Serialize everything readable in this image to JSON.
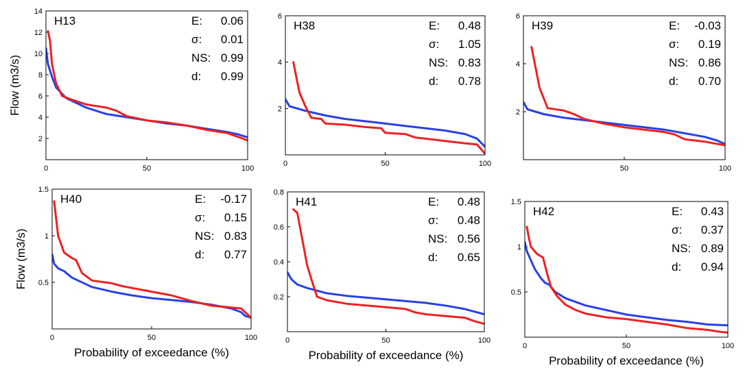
{
  "chart_data": [
    {
      "type": "line",
      "title": "H13",
      "ylabel": "Flow (m3/s)",
      "xlabel": "",
      "xlim": [
        0,
        100
      ],
      "ylim": [
        0,
        14
      ],
      "xticks": [
        "0",
        "50",
        "100"
      ],
      "yticks": [
        "2",
        "4",
        "6",
        "8",
        "10",
        "12",
        "14"
      ],
      "stats": [
        {
          "label": "E:",
          "value": "0.06"
        },
        {
          "label": "σ:",
          "value": "0.01"
        },
        {
          "label": "NS:",
          "value": "0.99"
        },
        {
          "label": "d:",
          "value": "0.99"
        }
      ],
      "series": [
        {
          "color": "#2640e6",
          "points": [
            [
              0,
              10.5
            ],
            [
              1,
              9
            ],
            [
              3,
              7.8
            ],
            [
              5,
              6.8
            ],
            [
              10,
              5.8
            ],
            [
              20,
              4.9
            ],
            [
              30,
              4.3
            ],
            [
              40,
              4.0
            ],
            [
              50,
              3.7
            ],
            [
              60,
              3.4
            ],
            [
              70,
              3.2
            ],
            [
              80,
              2.9
            ],
            [
              90,
              2.6
            ],
            [
              95,
              2.4
            ],
            [
              100,
              2.1
            ]
          ]
        },
        {
          "color": "#ee2020",
          "points": [
            [
              1,
              12.1
            ],
            [
              2,
              11.2
            ],
            [
              3,
              9
            ],
            [
              5,
              7.2
            ],
            [
              8,
              6.0
            ],
            [
              12,
              5.7
            ],
            [
              20,
              5.2
            ],
            [
              30,
              4.9
            ],
            [
              35,
              4.6
            ],
            [
              40,
              4.1
            ],
            [
              50,
              3.7
            ],
            [
              60,
              3.5
            ],
            [
              70,
              3.2
            ],
            [
              80,
              2.8
            ],
            [
              90,
              2.5
            ],
            [
              96,
              2.1
            ],
            [
              100,
              1.8
            ]
          ]
        }
      ]
    },
    {
      "type": "line",
      "title": "H38",
      "ylabel": "",
      "xlabel": "",
      "xlim": [
        0,
        100
      ],
      "ylim": [
        0,
        6
      ],
      "xticks": [
        "0",
        "50",
        "100"
      ],
      "yticks": [
        "2",
        "4",
        "6"
      ],
      "stats": [
        {
          "label": "E:",
          "value": "0.48"
        },
        {
          "label": "σ:",
          "value": "1.05"
        },
        {
          "label": "NS:",
          "value": "0.83"
        },
        {
          "label": "d:",
          "value": "0.78"
        }
      ],
      "series": [
        {
          "color": "#2640e6",
          "points": [
            [
              0,
              2.4
            ],
            [
              2,
              2.1
            ],
            [
              10,
              1.9
            ],
            [
              20,
              1.7
            ],
            [
              30,
              1.55
            ],
            [
              40,
              1.45
            ],
            [
              50,
              1.35
            ],
            [
              60,
              1.25
            ],
            [
              70,
              1.15
            ],
            [
              80,
              1.05
            ],
            [
              90,
              0.9
            ],
            [
              96,
              0.7
            ],
            [
              100,
              0.35
            ]
          ]
        },
        {
          "color": "#ee2020",
          "points": [
            [
              4,
              4.0
            ],
            [
              7,
              2.7
            ],
            [
              10,
              2.1
            ],
            [
              13,
              1.6
            ],
            [
              18,
              1.55
            ],
            [
              20,
              1.35
            ],
            [
              30,
              1.3
            ],
            [
              40,
              1.2
            ],
            [
              48,
              1.15
            ],
            [
              50,
              0.95
            ],
            [
              60,
              0.9
            ],
            [
              65,
              0.75
            ],
            [
              70,
              0.7
            ],
            [
              80,
              0.6
            ],
            [
              90,
              0.5
            ],
            [
              96,
              0.45
            ],
            [
              100,
              0.05
            ]
          ]
        }
      ]
    },
    {
      "type": "line",
      "title": "H39",
      "ylabel": "",
      "xlabel": "",
      "xlim": [
        0,
        100
      ],
      "ylim": [
        0,
        6
      ],
      "xticks": [
        "50",
        "100"
      ],
      "yticks": [
        "2",
        "4",
        "6"
      ],
      "stats": [
        {
          "label": "E:",
          "value": "-0.03"
        },
        {
          "label": "σ:",
          "value": "0.19"
        },
        {
          "label": "NS:",
          "value": "0.86"
        },
        {
          "label": "d:",
          "value": "0.70"
        }
      ],
      "series": [
        {
          "color": "#2640e6",
          "points": [
            [
              0,
              2.4
            ],
            [
              2,
              2.1
            ],
            [
              10,
              1.9
            ],
            [
              20,
              1.75
            ],
            [
              30,
              1.65
            ],
            [
              40,
              1.55
            ],
            [
              50,
              1.45
            ],
            [
              60,
              1.35
            ],
            [
              70,
              1.25
            ],
            [
              80,
              1.1
            ],
            [
              90,
              0.95
            ],
            [
              96,
              0.8
            ],
            [
              100,
              0.65
            ]
          ]
        },
        {
          "color": "#ee2020",
          "points": [
            [
              4,
              4.7
            ],
            [
              8,
              3.0
            ],
            [
              12,
              2.15
            ],
            [
              20,
              2.05
            ],
            [
              25,
              1.9
            ],
            [
              30,
              1.7
            ],
            [
              40,
              1.5
            ],
            [
              50,
              1.35
            ],
            [
              60,
              1.25
            ],
            [
              70,
              1.15
            ],
            [
              75,
              1.05
            ],
            [
              80,
              0.85
            ],
            [
              90,
              0.75
            ],
            [
              100,
              0.6
            ]
          ]
        }
      ]
    },
    {
      "type": "line",
      "title": "H40",
      "ylabel": "Flow (m3/s)",
      "xlabel": "Probability of exceedance (%)",
      "xlim": [
        0,
        100
      ],
      "ylim": [
        0,
        1.5
      ],
      "xticks": [
        "0",
        "50",
        "100"
      ],
      "yticks": [
        "0.5",
        "1",
        "1.5"
      ],
      "stats": [
        {
          "label": "E:",
          "value": "-0.17"
        },
        {
          "label": "σ:",
          "value": "0.15"
        },
        {
          "label": "NS:",
          "value": "0.83"
        },
        {
          "label": "d:",
          "value": "0.77"
        }
      ],
      "series": [
        {
          "color": "#2640e6",
          "points": [
            [
              0,
              0.8
            ],
            [
              1,
              0.7
            ],
            [
              3,
              0.65
            ],
            [
              6,
              0.62
            ],
            [
              10,
              0.55
            ],
            [
              20,
              0.45
            ],
            [
              30,
              0.4
            ],
            [
              40,
              0.36
            ],
            [
              50,
              0.33
            ],
            [
              60,
              0.31
            ],
            [
              70,
              0.29
            ],
            [
              80,
              0.26
            ],
            [
              90,
              0.22
            ],
            [
              95,
              0.18
            ],
            [
              97,
              0.14
            ],
            [
              100,
              0.12
            ]
          ]
        },
        {
          "color": "#ee2020",
          "points": [
            [
              1,
              1.37
            ],
            [
              3,
              1.0
            ],
            [
              6,
              0.82
            ],
            [
              10,
              0.76
            ],
            [
              12,
              0.74
            ],
            [
              15,
              0.6
            ],
            [
              20,
              0.52
            ],
            [
              30,
              0.49
            ],
            [
              35,
              0.46
            ],
            [
              40,
              0.44
            ],
            [
              50,
              0.4
            ],
            [
              60,
              0.36
            ],
            [
              70,
              0.3
            ],
            [
              80,
              0.25
            ],
            [
              90,
              0.23
            ],
            [
              95,
              0.22
            ],
            [
              100,
              0.12
            ]
          ]
        }
      ]
    },
    {
      "type": "line",
      "title": "H41",
      "ylabel": "",
      "xlabel": "Probability of exceedance (%)",
      "xlim": [
        0,
        100
      ],
      "ylim": [
        0,
        0.8
      ],
      "xticks": [
        "0",
        "50",
        "100"
      ],
      "yticks": [
        "0.2",
        "0.4",
        "0.6",
        "0.8"
      ],
      "stats": [
        {
          "label": "E:",
          "value": "0.48"
        },
        {
          "label": "σ:",
          "value": "0.48"
        },
        {
          "label": "NS:",
          "value": "0.56"
        },
        {
          "label": "d:",
          "value": "0.65"
        }
      ],
      "series": [
        {
          "color": "#2640e6",
          "points": [
            [
              0,
              0.34
            ],
            [
              2,
              0.3
            ],
            [
              5,
              0.27
            ],
            [
              10,
              0.25
            ],
            [
              20,
              0.22
            ],
            [
              30,
              0.205
            ],
            [
              40,
              0.195
            ],
            [
              50,
              0.185
            ],
            [
              60,
              0.175
            ],
            [
              70,
              0.165
            ],
            [
              80,
              0.15
            ],
            [
              90,
              0.13
            ],
            [
              100,
              0.1
            ]
          ]
        },
        {
          "color": "#ee2020",
          "points": [
            [
              3,
              0.7
            ],
            [
              5,
              0.68
            ],
            [
              8,
              0.5
            ],
            [
              10,
              0.38
            ],
            [
              13,
              0.27
            ],
            [
              15,
              0.2
            ],
            [
              20,
              0.18
            ],
            [
              30,
              0.16
            ],
            [
              40,
              0.15
            ],
            [
              50,
              0.14
            ],
            [
              60,
              0.13
            ],
            [
              65,
              0.11
            ],
            [
              70,
              0.1
            ],
            [
              80,
              0.09
            ],
            [
              90,
              0.08
            ],
            [
              95,
              0.06
            ],
            [
              100,
              0.045
            ]
          ]
        }
      ]
    },
    {
      "type": "line",
      "title": "H42",
      "ylabel": "",
      "xlabel": "Probability of exceedance (%)",
      "xlim": [
        0,
        100
      ],
      "ylim": [
        0,
        1.5
      ],
      "xticks": [
        "0",
        "50",
        "100"
      ],
      "yticks": [
        "0.5",
        "1",
        "1.5"
      ],
      "stats": [
        {
          "label": "E:",
          "value": "0.43"
        },
        {
          "label": "σ:",
          "value": "0.37"
        },
        {
          "label": "NS:",
          "value": "0.89"
        },
        {
          "label": "d:",
          "value": "0.94"
        }
      ],
      "series": [
        {
          "color": "#2640e6",
          "points": [
            [
              0,
              1.05
            ],
            [
              1,
              0.95
            ],
            [
              3,
              0.85
            ],
            [
              5,
              0.75
            ],
            [
              8,
              0.65
            ],
            [
              10,
              0.6
            ],
            [
              12,
              0.58
            ],
            [
              15,
              0.5
            ],
            [
              20,
              0.43
            ],
            [
              30,
              0.35
            ],
            [
              40,
              0.3
            ],
            [
              50,
              0.25
            ],
            [
              60,
              0.22
            ],
            [
              70,
              0.19
            ],
            [
              80,
              0.17
            ],
            [
              90,
              0.14
            ],
            [
              100,
              0.13
            ]
          ]
        },
        {
          "color": "#ee2020",
          "points": [
            [
              1,
              1.22
            ],
            [
              2,
              1.1
            ],
            [
              3,
              1.0
            ],
            [
              6,
              0.92
            ],
            [
              9,
              0.88
            ],
            [
              11,
              0.7
            ],
            [
              13,
              0.55
            ],
            [
              16,
              0.45
            ],
            [
              20,
              0.36
            ],
            [
              25,
              0.3
            ],
            [
              30,
              0.26
            ],
            [
              40,
              0.22
            ],
            [
              50,
              0.2
            ],
            [
              60,
              0.17
            ],
            [
              70,
              0.14
            ],
            [
              80,
              0.1
            ],
            [
              90,
              0.08
            ],
            [
              96,
              0.06
            ],
            [
              100,
              0.05
            ]
          ]
        }
      ]
    }
  ]
}
